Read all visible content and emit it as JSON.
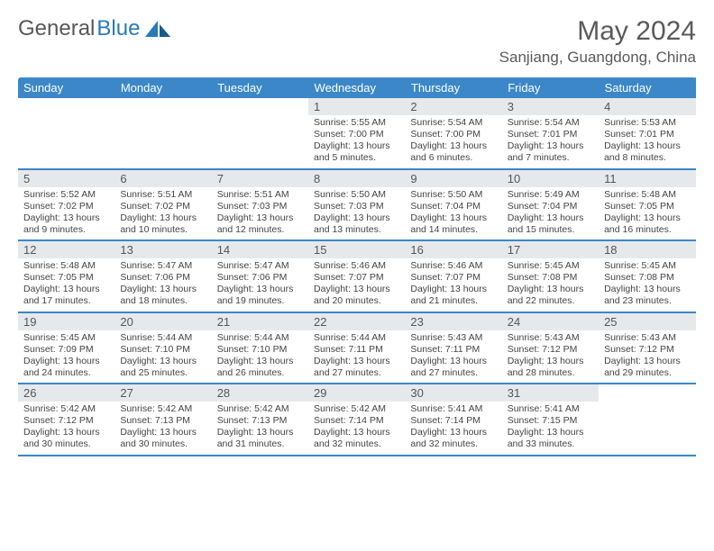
{
  "logo": {
    "text1": "General",
    "text2": "Blue"
  },
  "title": "May 2024",
  "location": "Sanjiang, Guangdong, China",
  "colors": {
    "header_bg": "#3b87c8",
    "header_text": "#ffffff",
    "date_bg": "#e6e9ec",
    "text": "#444444",
    "border": "#3b87c8",
    "logo_gray": "#585858",
    "logo_blue": "#2a7ab8",
    "title_color": "#5a5a5a"
  },
  "day_headers": [
    "Sunday",
    "Monday",
    "Tuesday",
    "Wednesday",
    "Thursday",
    "Friday",
    "Saturday"
  ],
  "weeks": [
    [
      {
        "empty": true
      },
      {
        "empty": true
      },
      {
        "empty": true
      },
      {
        "date": "1",
        "sunrise": "5:55 AM",
        "sunset": "7:00 PM",
        "daylight": "13 hours and 5 minutes."
      },
      {
        "date": "2",
        "sunrise": "5:54 AM",
        "sunset": "7:00 PM",
        "daylight": "13 hours and 6 minutes."
      },
      {
        "date": "3",
        "sunrise": "5:54 AM",
        "sunset": "7:01 PM",
        "daylight": "13 hours and 7 minutes."
      },
      {
        "date": "4",
        "sunrise": "5:53 AM",
        "sunset": "7:01 PM",
        "daylight": "13 hours and 8 minutes."
      }
    ],
    [
      {
        "date": "5",
        "sunrise": "5:52 AM",
        "sunset": "7:02 PM",
        "daylight": "13 hours and 9 minutes."
      },
      {
        "date": "6",
        "sunrise": "5:51 AM",
        "sunset": "7:02 PM",
        "daylight": "13 hours and 10 minutes."
      },
      {
        "date": "7",
        "sunrise": "5:51 AM",
        "sunset": "7:03 PM",
        "daylight": "13 hours and 12 minutes."
      },
      {
        "date": "8",
        "sunrise": "5:50 AM",
        "sunset": "7:03 PM",
        "daylight": "13 hours and 13 minutes."
      },
      {
        "date": "9",
        "sunrise": "5:50 AM",
        "sunset": "7:04 PM",
        "daylight": "13 hours and 14 minutes."
      },
      {
        "date": "10",
        "sunrise": "5:49 AM",
        "sunset": "7:04 PM",
        "daylight": "13 hours and 15 minutes."
      },
      {
        "date": "11",
        "sunrise": "5:48 AM",
        "sunset": "7:05 PM",
        "daylight": "13 hours and 16 minutes."
      }
    ],
    [
      {
        "date": "12",
        "sunrise": "5:48 AM",
        "sunset": "7:05 PM",
        "daylight": "13 hours and 17 minutes."
      },
      {
        "date": "13",
        "sunrise": "5:47 AM",
        "sunset": "7:06 PM",
        "daylight": "13 hours and 18 minutes."
      },
      {
        "date": "14",
        "sunrise": "5:47 AM",
        "sunset": "7:06 PM",
        "daylight": "13 hours and 19 minutes."
      },
      {
        "date": "15",
        "sunrise": "5:46 AM",
        "sunset": "7:07 PM",
        "daylight": "13 hours and 20 minutes."
      },
      {
        "date": "16",
        "sunrise": "5:46 AM",
        "sunset": "7:07 PM",
        "daylight": "13 hours and 21 minutes."
      },
      {
        "date": "17",
        "sunrise": "5:45 AM",
        "sunset": "7:08 PM",
        "daylight": "13 hours and 22 minutes."
      },
      {
        "date": "18",
        "sunrise": "5:45 AM",
        "sunset": "7:08 PM",
        "daylight": "13 hours and 23 minutes."
      }
    ],
    [
      {
        "date": "19",
        "sunrise": "5:45 AM",
        "sunset": "7:09 PM",
        "daylight": "13 hours and 24 minutes."
      },
      {
        "date": "20",
        "sunrise": "5:44 AM",
        "sunset": "7:10 PM",
        "daylight": "13 hours and 25 minutes."
      },
      {
        "date": "21",
        "sunrise": "5:44 AM",
        "sunset": "7:10 PM",
        "daylight": "13 hours and 26 minutes."
      },
      {
        "date": "22",
        "sunrise": "5:44 AM",
        "sunset": "7:11 PM",
        "daylight": "13 hours and 27 minutes."
      },
      {
        "date": "23",
        "sunrise": "5:43 AM",
        "sunset": "7:11 PM",
        "daylight": "13 hours and 27 minutes."
      },
      {
        "date": "24",
        "sunrise": "5:43 AM",
        "sunset": "7:12 PM",
        "daylight": "13 hours and 28 minutes."
      },
      {
        "date": "25",
        "sunrise": "5:43 AM",
        "sunset": "7:12 PM",
        "daylight": "13 hours and 29 minutes."
      }
    ],
    [
      {
        "date": "26",
        "sunrise": "5:42 AM",
        "sunset": "7:12 PM",
        "daylight": "13 hours and 30 minutes."
      },
      {
        "date": "27",
        "sunrise": "5:42 AM",
        "sunset": "7:13 PM",
        "daylight": "13 hours and 30 minutes."
      },
      {
        "date": "28",
        "sunrise": "5:42 AM",
        "sunset": "7:13 PM",
        "daylight": "13 hours and 31 minutes."
      },
      {
        "date": "29",
        "sunrise": "5:42 AM",
        "sunset": "7:14 PM",
        "daylight": "13 hours and 32 minutes."
      },
      {
        "date": "30",
        "sunrise": "5:41 AM",
        "sunset": "7:14 PM",
        "daylight": "13 hours and 32 minutes."
      },
      {
        "date": "31",
        "sunrise": "5:41 AM",
        "sunset": "7:15 PM",
        "daylight": "13 hours and 33 minutes."
      },
      {
        "empty": true
      }
    ]
  ],
  "labels": {
    "sunrise": "Sunrise:",
    "sunset": "Sunset:",
    "daylight": "Daylight:"
  }
}
